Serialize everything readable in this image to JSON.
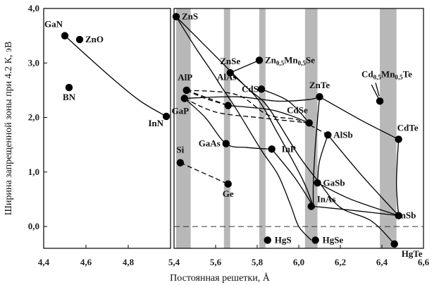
{
  "chart_data": {
    "type": "scatter",
    "title": "",
    "xlabel": "Постоянная решетки, Å",
    "ylabel": "Ширина запрещенной зоны при 4.2 К, эВ",
    "panels": [
      {
        "name": "left",
        "xlim": [
          4.4,
          5.0
        ],
        "xticks": [
          "4,4",
          "4,6",
          "4,8"
        ],
        "xtick_values": [
          4.4,
          4.6,
          4.8
        ]
      },
      {
        "name": "right",
        "xlim": [
          5.4,
          6.6
        ],
        "xticks": [
          "5,4",
          "5,6",
          "5,8",
          "6,0",
          "6,2",
          "6,4",
          "6,6"
        ],
        "xtick_values": [
          5.4,
          5.6,
          5.8,
          6.0,
          6.2,
          6.4,
          6.6
        ]
      }
    ],
    "ylim": [
      -0.4,
      4.0
    ],
    "yticks": [
      "4,0",
      "3,0",
      "2,0",
      "1,0",
      "0,0"
    ],
    "ytick_values": [
      4.0,
      3.0,
      2.0,
      1.0,
      0.0
    ],
    "zero_line": "dashed",
    "shaded_bands": [
      {
        "x0": 5.41,
        "x1": 5.48
      },
      {
        "x0": 5.64,
        "x1": 5.67
      },
      {
        "x0": 5.81,
        "x1": 5.84
      },
      {
        "x0": 6.03,
        "x1": 6.09
      },
      {
        "x0": 6.39,
        "x1": 6.47
      }
    ],
    "points": [
      {
        "label": "GaN",
        "x": 4.5,
        "y": 3.5
      },
      {
        "label": "ZnO",
        "x": 4.57,
        "y": 3.43
      },
      {
        "label": "BN",
        "x": 4.52,
        "y": 2.55
      },
      {
        "label": "InN",
        "x": 4.98,
        "y": 2.02
      },
      {
        "label": "ZnS",
        "x": 5.41,
        "y": 3.85
      },
      {
        "label": "ZnSe",
        "x": 5.67,
        "y": 2.82
      },
      {
        "label": "Zn",
        "sub1": "0,5",
        "mid": "Mn",
        "sub2": "0,5",
        "suffix": "Se",
        "x": 5.81,
        "y": 3.05
      },
      {
        "label": "CdS",
        "x": 5.82,
        "y": 2.52
      },
      {
        "label": "AlP",
        "x": 5.46,
        "y": 2.5
      },
      {
        "label": "AlAs",
        "x": 5.66,
        "y": 2.22
      },
      {
        "label": "GaP",
        "x": 5.45,
        "y": 2.35
      },
      {
        "label": "ZnTe",
        "x": 6.1,
        "y": 2.38
      },
      {
        "label": "CdSe",
        "x": 6.05,
        "y": 1.9
      },
      {
        "label": "Cd",
        "sub1": "0,5",
        "mid": "Mn",
        "sub2": "0,5",
        "suffix": "Te",
        "x": 6.39,
        "y": 2.3
      },
      {
        "label": "CdTe",
        "x": 6.48,
        "y": 1.6
      },
      {
        "label": "AlSb",
        "x": 6.14,
        "y": 1.68
      },
      {
        "label": "GaAs",
        "x": 5.65,
        "y": 1.52
      },
      {
        "label": "InP",
        "x": 5.87,
        "y": 1.42
      },
      {
        "label": "Si",
        "x": 5.43,
        "y": 1.17
      },
      {
        "label": "Ge",
        "x": 5.66,
        "y": 0.78
      },
      {
        "label": "GaSb",
        "x": 6.09,
        "y": 0.8
      },
      {
        "label": "InAs",
        "x": 6.06,
        "y": 0.37
      },
      {
        "label": "InSb",
        "x": 6.48,
        "y": 0.2
      },
      {
        "label": "HgS",
        "x": 5.85,
        "y": -0.25
      },
      {
        "label": "HgSe",
        "x": 6.08,
        "y": -0.25
      },
      {
        "label": "HgTe",
        "x": 6.46,
        "y": -0.32
      }
    ],
    "curves": [
      {
        "style": "solid",
        "points": [
          [
            4.5,
            3.5
          ],
          [
            4.7,
            2.8
          ],
          [
            4.85,
            2.32
          ],
          [
            4.98,
            2.02
          ]
        ]
      },
      {
        "style": "solid",
        "points": [
          [
            5.41,
            3.85
          ],
          [
            5.5,
            3.3
          ],
          [
            5.58,
            2.85
          ],
          [
            5.63,
            2.55
          ],
          [
            5.7,
            2.15
          ],
          [
            5.82,
            1.4
          ],
          [
            5.9,
            0.95
          ],
          [
            5.96,
            0.4
          ],
          [
            6.0,
            0.0
          ],
          [
            6.06,
            -0.25
          ]
        ]
      },
      {
        "style": "solid",
        "points": [
          [
            5.41,
            3.85
          ],
          [
            5.58,
            3.2
          ],
          [
            5.75,
            2.55
          ],
          [
            5.85,
            2.2
          ],
          [
            6.0,
            1.3
          ],
          [
            6.1,
            0.8
          ],
          [
            6.2,
            0.35
          ],
          [
            6.35,
            0.1
          ],
          [
            6.46,
            -0.32
          ]
        ]
      },
      {
        "style": "solid",
        "points": [
          [
            5.67,
            2.82
          ],
          [
            5.81,
            3.05
          ]
        ]
      },
      {
        "style": "solid",
        "points": [
          [
            5.67,
            2.82
          ],
          [
            5.8,
            2.35
          ],
          [
            5.9,
            1.7
          ],
          [
            6.02,
            0.85
          ],
          [
            6.07,
            0.37
          ]
        ]
      },
      {
        "style": "solid",
        "points": [
          [
            5.82,
            2.52
          ],
          [
            5.95,
            2.3
          ],
          [
            6.05,
            1.9
          ]
        ]
      },
      {
        "style": "solid",
        "points": [
          [
            6.1,
            2.38
          ],
          [
            6.3,
            1.95
          ],
          [
            6.48,
            1.6
          ]
        ]
      },
      {
        "style": "solid",
        "points": [
          [
            6.1,
            2.38
          ],
          [
            6.08,
            1.5
          ],
          [
            6.07,
            0.8
          ],
          [
            6.07,
            0.37
          ]
        ]
      },
      {
        "style": "solid",
        "points": [
          [
            6.48,
            1.6
          ],
          [
            6.47,
            0.8
          ],
          [
            6.48,
            0.2
          ]
        ]
      },
      {
        "style": "solid",
        "points": [
          [
            6.39,
            2.3
          ],
          [
            6.35,
            2.6
          ]
        ]
      },
      {
        "style": "solid",
        "points": [
          [
            6.14,
            1.68
          ],
          [
            6.1,
            1.2
          ],
          [
            6.09,
            0.8
          ]
        ]
      },
      {
        "style": "solid",
        "points": [
          [
            6.14,
            1.68
          ],
          [
            6.3,
            0.95
          ],
          [
            6.48,
            0.2
          ]
        ]
      },
      {
        "style": "solid",
        "points": [
          [
            5.66,
            2.22
          ],
          [
            5.85,
            2.15
          ],
          [
            5.95,
            2.05
          ],
          [
            6.05,
            1.9
          ]
        ]
      },
      {
        "style": "solid",
        "points": [
          [
            5.45,
            2.35
          ],
          [
            5.55,
            2.0
          ],
          [
            5.65,
            1.52
          ],
          [
            5.75,
            1.45
          ],
          [
            5.87,
            1.42
          ]
        ]
      },
      {
        "style": "solid",
        "points": [
          [
            5.87,
            1.42
          ],
          [
            5.98,
            0.9
          ],
          [
            6.07,
            0.37
          ]
        ]
      },
      {
        "style": "solid",
        "points": [
          [
            5.45,
            2.35
          ],
          [
            5.7,
            2.38
          ],
          [
            5.9,
            2.3
          ],
          [
            6.05,
            2.33
          ],
          [
            6.1,
            2.38
          ]
        ]
      },
      {
        "style": "solid",
        "points": [
          [
            6.09,
            0.8
          ],
          [
            6.25,
            0.5
          ],
          [
            6.48,
            0.2
          ]
        ]
      },
      {
        "style": "solid",
        "points": [
          [
            6.07,
            0.37
          ],
          [
            6.25,
            0.3
          ],
          [
            6.48,
            0.2
          ]
        ]
      },
      {
        "style": "dashed",
        "points": [
          [
            5.46,
            2.5
          ],
          [
            5.66,
            2.22
          ]
        ]
      },
      {
        "style": "dashed",
        "points": [
          [
            5.46,
            2.5
          ],
          [
            5.7,
            2.42
          ],
          [
            5.85,
            2.05
          ],
          [
            6.0,
            1.95
          ],
          [
            6.14,
            1.68
          ]
        ]
      },
      {
        "style": "dashed",
        "points": [
          [
            5.45,
            2.35
          ],
          [
            5.6,
            2.1
          ],
          [
            5.8,
            2.0
          ],
          [
            6.05,
            1.9
          ]
        ]
      },
      {
        "style": "dashed",
        "points": [
          [
            5.43,
            1.17
          ],
          [
            5.66,
            0.78
          ]
        ]
      },
      {
        "style": "dashed",
        "points": [
          [
            5.46,
            2.5
          ],
          [
            5.55,
            2.35
          ],
          [
            5.66,
            2.22
          ]
        ]
      }
    ]
  }
}
